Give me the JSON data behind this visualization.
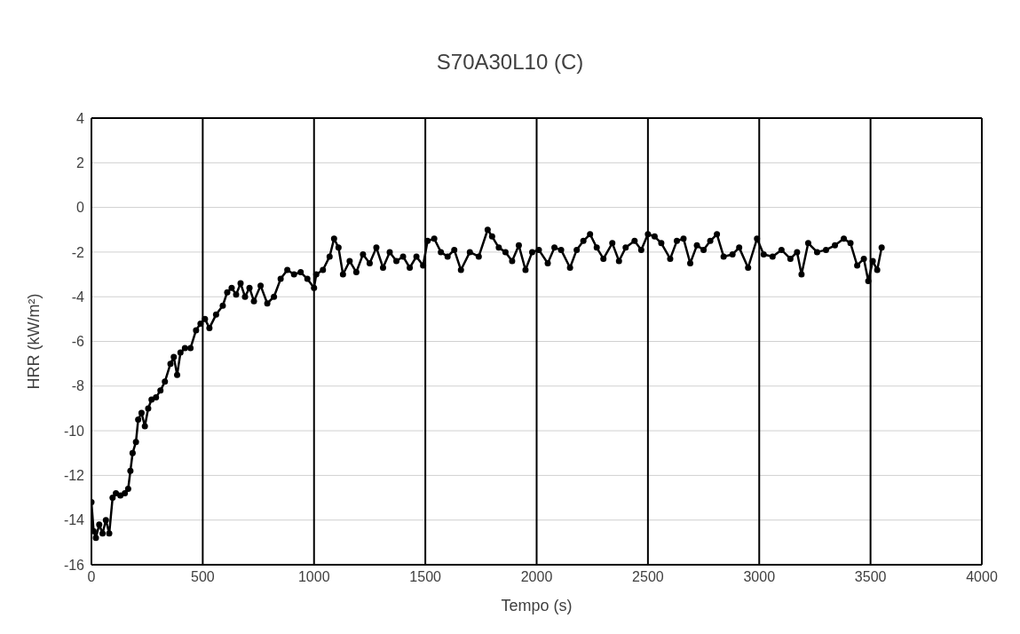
{
  "chart_data": {
    "type": "line",
    "title": "S70A30L10 (C)",
    "xlabel": "Tempo (s)",
    "ylabel": "HRR (kW/m²)",
    "xlim": [
      0,
      4000
    ],
    "xticks": [
      0,
      500,
      1000,
      1500,
      2000,
      2500,
      3000,
      3500,
      4000
    ],
    "ylim": [
      -16,
      4
    ],
    "yticks": [
      -16,
      -14,
      -12,
      -10,
      -8,
      -6,
      -4,
      -2,
      0,
      2,
      4
    ],
    "grid": true,
    "legend": false,
    "marker": "circle",
    "line_style": "solid",
    "series": [
      {
        "color": "#000000",
        "x": [
          0,
          10,
          20,
          35,
          50,
          65,
          80,
          95,
          110,
          130,
          150,
          165,
          175,
          185,
          200,
          210,
          225,
          240,
          255,
          270,
          290,
          310,
          330,
          355,
          370,
          385,
          400,
          420,
          445,
          470,
          490,
          510,
          530,
          560,
          590,
          610,
          630,
          650,
          670,
          690,
          710,
          730,
          760,
          790,
          820,
          850,
          880,
          910,
          940,
          970,
          1000,
          1010,
          1040,
          1070,
          1090,
          1110,
          1130,
          1160,
          1190,
          1220,
          1250,
          1280,
          1310,
          1340,
          1370,
          1400,
          1430,
          1460,
          1490,
          1510,
          1540,
          1570,
          1600,
          1630,
          1660,
          1700,
          1740,
          1780,
          1800,
          1830,
          1860,
          1890,
          1920,
          1950,
          1980,
          2010,
          2050,
          2080,
          2110,
          2150,
          2180,
          2210,
          2240,
          2270,
          2300,
          2340,
          2370,
          2400,
          2440,
          2470,
          2500,
          2530,
          2560,
          2600,
          2630,
          2660,
          2690,
          2720,
          2750,
          2780,
          2810,
          2840,
          2880,
          2910,
          2950,
          2990,
          3020,
          3060,
          3100,
          3140,
          3170,
          3190,
          3220,
          3260,
          3300,
          3340,
          3380,
          3410,
          3440,
          3470,
          3490,
          3510,
          3530,
          3550
        ],
        "values": [
          -13.2,
          -14.5,
          -14.8,
          -14.2,
          -14.6,
          -14.0,
          -14.6,
          -13.0,
          -12.8,
          -12.9,
          -12.8,
          -12.6,
          -11.8,
          -11.0,
          -10.5,
          -9.5,
          -9.2,
          -9.8,
          -9.0,
          -8.6,
          -8.5,
          -8.2,
          -7.8,
          -7.0,
          -6.7,
          -7.5,
          -6.5,
          -6.3,
          -6.3,
          -5.5,
          -5.2,
          -5.0,
          -5.4,
          -4.8,
          -4.4,
          -3.8,
          -3.6,
          -3.9,
          -3.4,
          -4.0,
          -3.6,
          -4.2,
          -3.5,
          -4.3,
          -4.0,
          -3.2,
          -2.8,
          -3.0,
          -2.9,
          -3.2,
          -3.6,
          -3.0,
          -2.8,
          -2.2,
          -1.4,
          -1.8,
          -3.0,
          -2.4,
          -2.9,
          -2.1,
          -2.5,
          -1.8,
          -2.7,
          -2.0,
          -2.4,
          -2.2,
          -2.7,
          -2.2,
          -2.6,
          -1.5,
          -1.4,
          -2.0,
          -2.2,
          -1.9,
          -2.8,
          -2.0,
          -2.2,
          -1.0,
          -1.3,
          -1.8,
          -2.0,
          -2.4,
          -1.7,
          -2.8,
          -2.0,
          -1.9,
          -2.5,
          -1.8,
          -1.9,
          -2.7,
          -1.9,
          -1.5,
          -1.2,
          -1.8,
          -2.3,
          -1.6,
          -2.4,
          -1.8,
          -1.5,
          -1.9,
          -1.2,
          -1.3,
          -1.6,
          -2.3,
          -1.5,
          -1.4,
          -2.5,
          -1.7,
          -1.9,
          -1.5,
          -1.2,
          -2.2,
          -2.1,
          -1.8,
          -2.7,
          -1.4,
          -2.1,
          -2.2,
          -1.9,
          -2.3,
          -2.0,
          -3.0,
          -1.6,
          -2.0,
          -1.9,
          -1.7,
          -1.4,
          -1.6,
          -2.6,
          -2.3,
          -3.3,
          -2.4,
          -2.8,
          -1.8
        ]
      }
    ]
  }
}
